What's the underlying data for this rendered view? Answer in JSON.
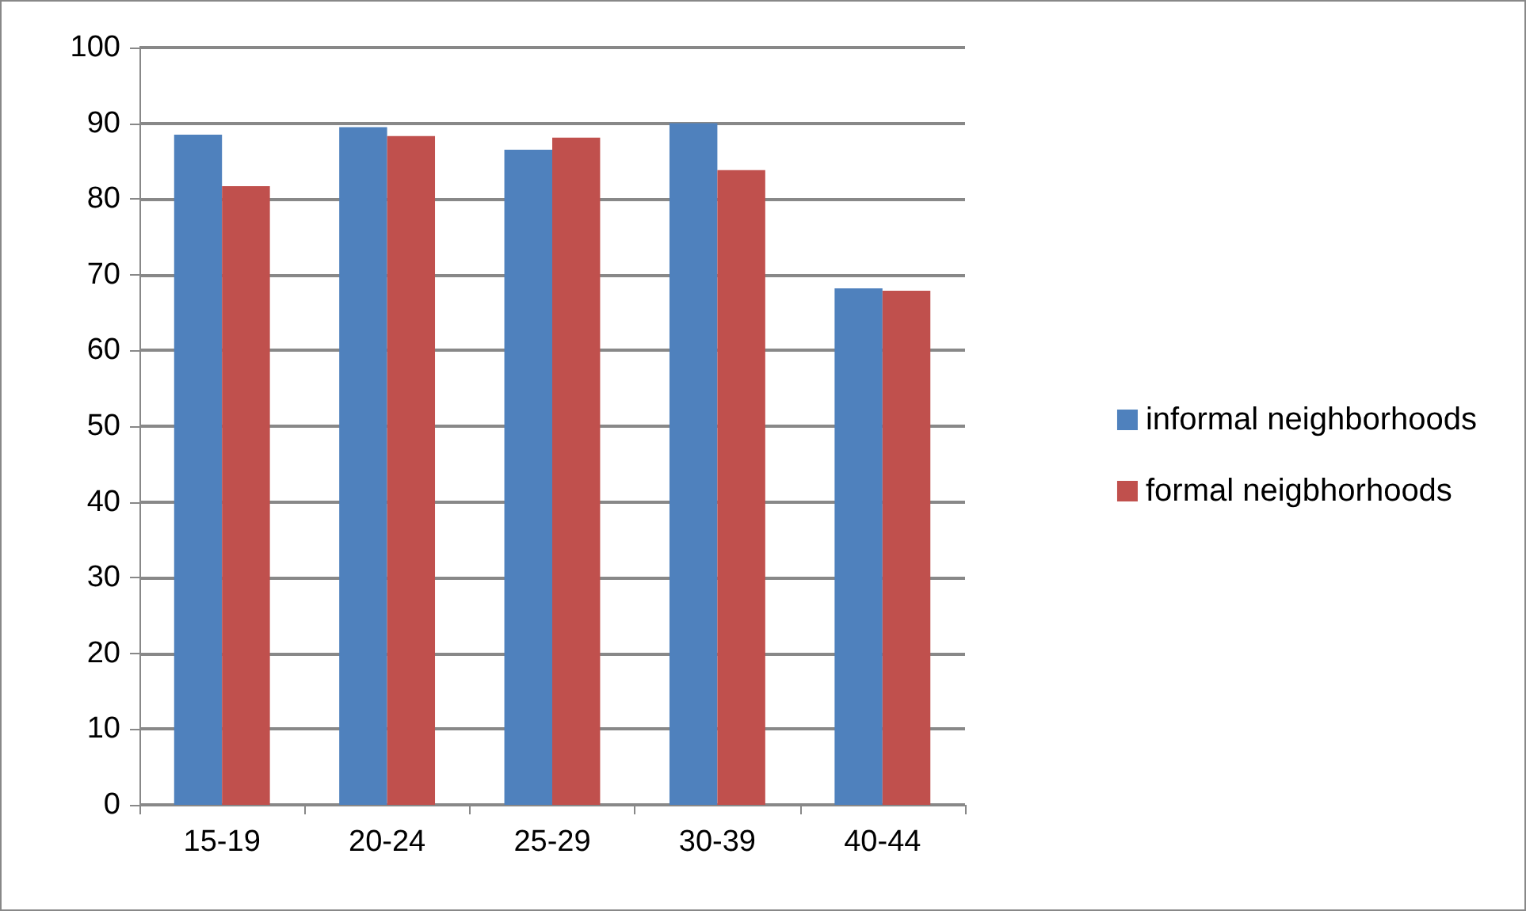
{
  "chart_data": {
    "type": "bar",
    "categories": [
      "15-19",
      "20-24",
      "25-29",
      "30-39",
      "40-44"
    ],
    "series": [
      {
        "name": "informal neighborhoods",
        "color": "#4f81bd",
        "values": [
          88.5,
          89.5,
          86.5,
          90,
          68.2
        ]
      },
      {
        "name": "formal neigbhorhoods",
        "color": "#c0504d",
        "values": [
          81.7,
          88.3,
          88.1,
          83.8,
          67.9
        ]
      }
    ],
    "ylim": [
      0,
      100
    ],
    "yticks": [
      0,
      10,
      20,
      30,
      40,
      50,
      60,
      70,
      80,
      90,
      100
    ],
    "grid": "y",
    "legend": "right"
  }
}
